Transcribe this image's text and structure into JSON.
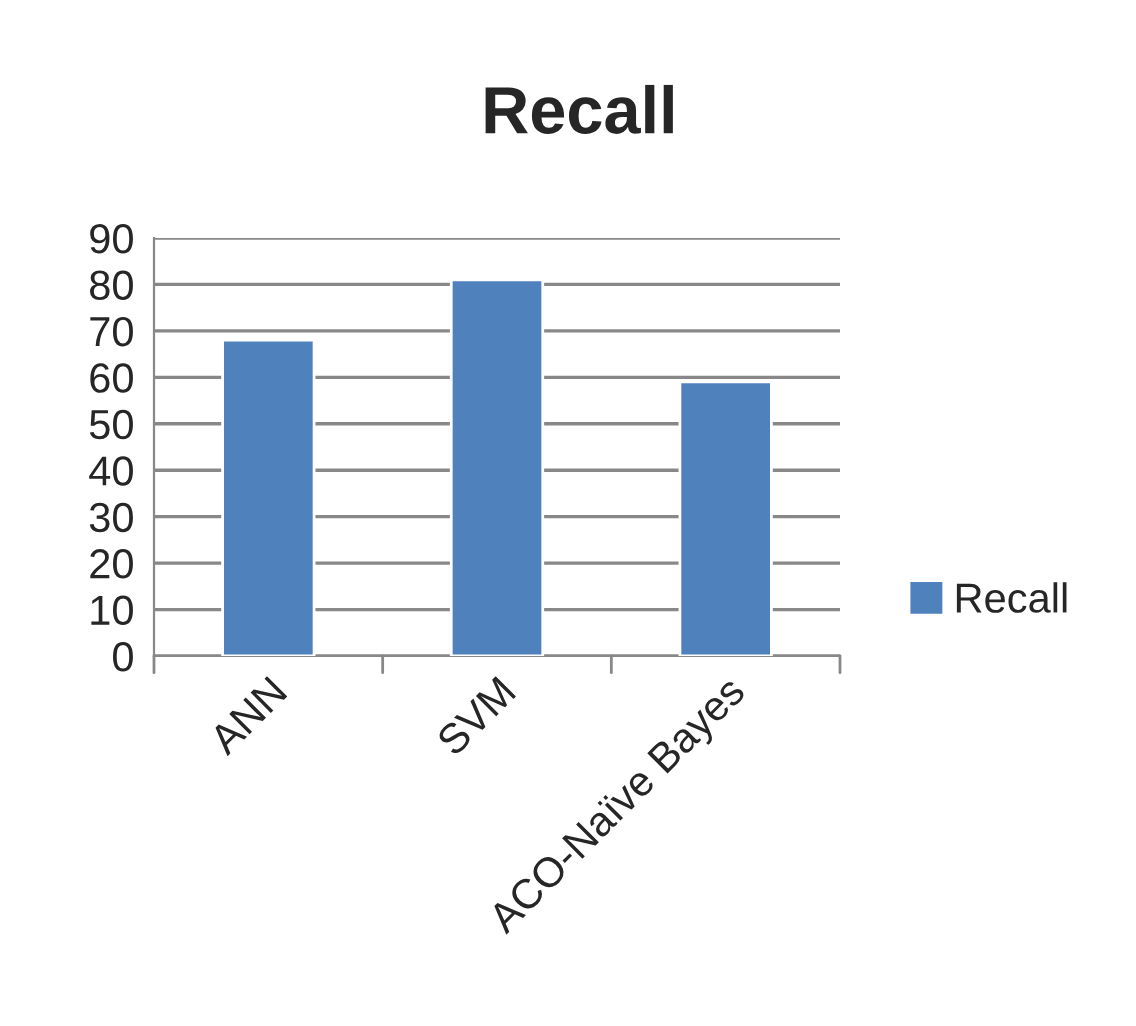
{
  "chart_data": {
    "type": "bar",
    "title": "Recall",
    "categories": [
      "ANN",
      "SVM",
      "ACO-Naïve Bayes"
    ],
    "series": [
      {
        "name": "Recall",
        "color": "#4f81bd",
        "values": [
          68,
          81,
          59
        ]
      }
    ],
    "ylim": [
      0,
      90
    ],
    "yticks": [
      0,
      10,
      20,
      30,
      40,
      50,
      60,
      70,
      80,
      90
    ],
    "grid": "y",
    "legend": "right"
  }
}
